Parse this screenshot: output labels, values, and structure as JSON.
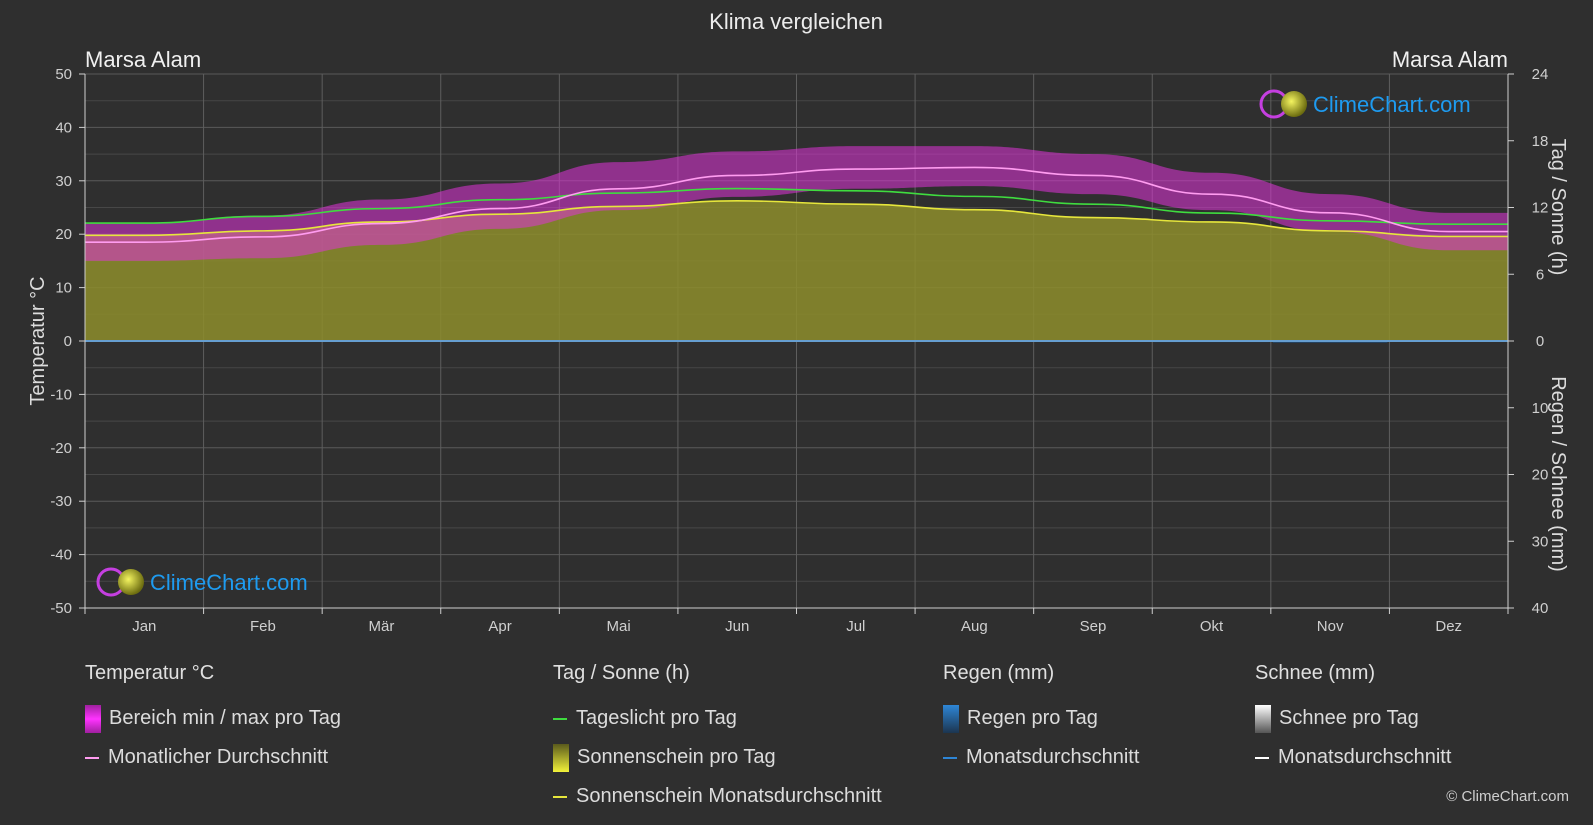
{
  "title": "Klima vergleichen",
  "location_left": "Marsa Alam",
  "location_right": "Marsa Alam",
  "brand": "ClimeChart.com",
  "copyright": "© ClimeChart.com",
  "colors": {
    "background": "#2f2f2f",
    "temp_range": "#e033d8",
    "temp_avg": "#ff9cf0",
    "daylight": "#3fdc3f",
    "sunshine_fill": "#8d8d2c",
    "sunshine_avg": "#e6e63c",
    "rain": "#2e86d6",
    "snow": "#ffffff",
    "brand_text": "#1e9bf0"
  },
  "chart_data": {
    "type": "line",
    "categories": [
      "Jan",
      "Feb",
      "Mär",
      "Apr",
      "Mai",
      "Jun",
      "Jul",
      "Aug",
      "Sep",
      "Okt",
      "Nov",
      "Dez"
    ],
    "left_axis": {
      "label": "Temperatur °C",
      "min": -50,
      "max": 50,
      "ticks": [
        "50",
        "40",
        "30",
        "20",
        "10",
        "0",
        "-10",
        "-20",
        "-30",
        "-40",
        "-50"
      ]
    },
    "right_axis_top": {
      "label": "Tag / Sonne (h)",
      "min": 0,
      "max": 24,
      "ticks": [
        "24",
        "18",
        "12",
        "6",
        "0"
      ]
    },
    "right_axis_bottom": {
      "label": "Regen / Schnee (mm)",
      "min": 0,
      "max": 40,
      "ticks": [
        "10",
        "20",
        "30",
        "40"
      ]
    },
    "series": [
      {
        "name": "Monatlicher Durchschnitt",
        "unit": "°C",
        "values": [
          18.5,
          19.5,
          22.0,
          24.8,
          28.5,
          31.0,
          32.2,
          32.5,
          31.0,
          27.5,
          24.0,
          20.5
        ]
      },
      {
        "name": "Bereich min / max pro Tag (min)",
        "unit": "°C",
        "values": [
          15,
          15.5,
          18,
          21,
          24.5,
          27,
          28.5,
          29,
          27.5,
          24.5,
          20.5,
          17
        ]
      },
      {
        "name": "Bereich min / max pro Tag (max)",
        "unit": "°C",
        "values": [
          22,
          23.5,
          26.5,
          29.5,
          33.5,
          35.5,
          36.5,
          36.5,
          35,
          31.5,
          27.5,
          24
        ]
      },
      {
        "name": "Tageslicht pro Tag",
        "unit": "h",
        "values": [
          10.6,
          11.2,
          11.9,
          12.7,
          13.3,
          13.7,
          13.5,
          13.0,
          12.3,
          11.5,
          10.8,
          10.5
        ]
      },
      {
        "name": "Sonnenschein Monatsdurchschnitt",
        "unit": "h",
        "values": [
          9.5,
          9.9,
          10.7,
          11.4,
          12.1,
          12.6,
          12.3,
          11.8,
          11.1,
          10.7,
          9.9,
          9.4
        ]
      },
      {
        "name": "Regen Monatsdurchschnitt",
        "unit": "mm",
        "values": [
          0.1,
          0.1,
          0.1,
          0.0,
          0.0,
          0.0,
          0.0,
          0.0,
          0.0,
          0.2,
          0.3,
          0.1
        ]
      }
    ],
    "grid": true
  },
  "legend": {
    "temperature": {
      "title": "Temperatur °C",
      "items": [
        "Bereich min / max pro Tag",
        "Monatlicher Durchschnitt"
      ]
    },
    "sun": {
      "title": "Tag / Sonne (h)",
      "items": [
        "Tageslicht pro Tag",
        "Sonnenschein pro Tag",
        "Sonnenschein Monatsdurchschnitt"
      ]
    },
    "rain": {
      "title": "Regen (mm)",
      "items": [
        "Regen pro Tag",
        "Monatsdurchschnitt"
      ]
    },
    "snow": {
      "title": "Schnee (mm)",
      "items": [
        "Schnee pro Tag",
        "Monatsdurchschnitt"
      ]
    }
  }
}
